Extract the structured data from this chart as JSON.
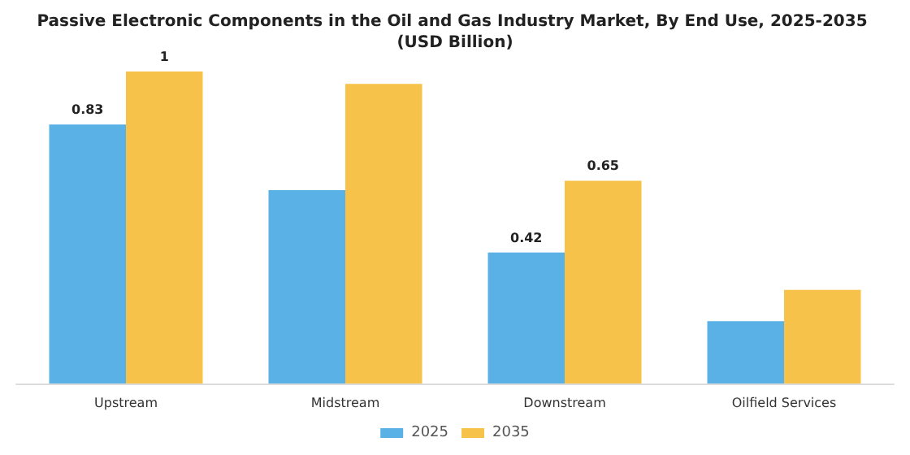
{
  "chart_data": {
    "type": "bar",
    "title": "Passive Electronic Components in the Oil and Gas Industry Market, By End Use, 2025-2035 (USD Billion)",
    "categories": [
      "Upstream",
      "Midstream",
      "Downstream",
      "Oilfield Services"
    ],
    "series": [
      {
        "name": "2025",
        "color": "#5ab1e6",
        "values": [
          0.83,
          0.62,
          0.42,
          0.2
        ],
        "value_labels": [
          "0.83",
          null,
          "0.42",
          null
        ]
      },
      {
        "name": "2035",
        "color": "#f7c24a",
        "values": [
          1,
          0.96,
          0.65,
          0.3
        ],
        "value_labels": [
          "1",
          null,
          "0.65",
          null
        ]
      }
    ],
    "legend": "bottom",
    "grid": false
  }
}
